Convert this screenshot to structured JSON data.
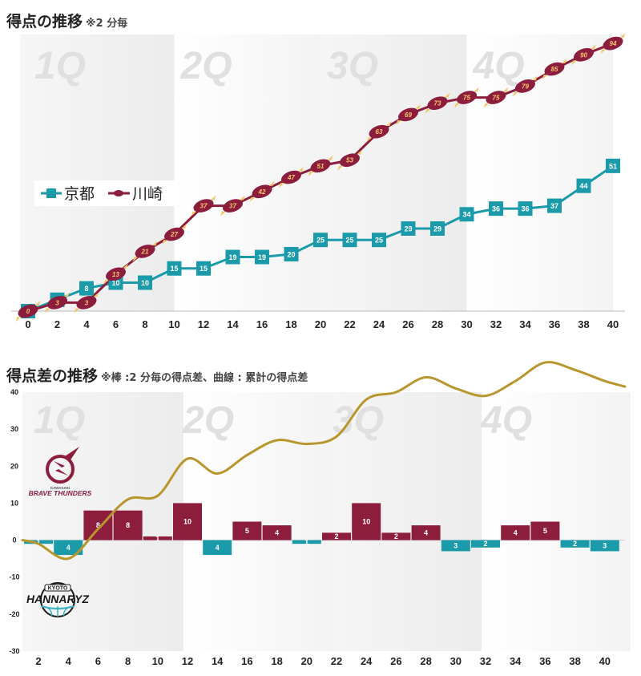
{
  "chart1": {
    "title": "得点の推移",
    "note": "※2 分毎"
  },
  "chart2": {
    "title": "得点差の推移",
    "note": "※棒 :2 分毎の得点差、曲線 : 累計の得点差"
  },
  "quarters": [
    "1Q",
    "2Q",
    "3Q",
    "4Q"
  ],
  "colors": {
    "kyoto": "#1b9aaa",
    "kawasaki": "#8c1d3c",
    "cumulative": "#b8962e",
    "shade": "#ececec",
    "oval_text": "#f3c66a"
  },
  "logos": {
    "kawasaki": {
      "name": "BRAVE THUNDERS",
      "city": "KAWASAKI"
    },
    "kyoto": {
      "name": "HANNARYZ",
      "city": "KYOTO"
    }
  },
  "chart_data": [
    {
      "type": "line",
      "title": "得点の推移",
      "x": [
        0,
        2,
        4,
        6,
        8,
        10,
        12,
        14,
        16,
        18,
        20,
        22,
        24,
        26,
        28,
        30,
        32,
        34,
        36,
        38,
        40
      ],
      "xlim": [
        0,
        40
      ],
      "ylim": [
        0,
        96
      ],
      "legend_position": "left-middle",
      "series": [
        {
          "name": "京都",
          "marker": "square",
          "values": [
            0,
            4,
            8,
            10,
            10,
            15,
            15,
            19,
            19,
            20,
            25,
            25,
            25,
            29,
            29,
            34,
            36,
            36,
            37,
            44,
            51
          ]
        },
        {
          "name": "川崎",
          "marker": "oval",
          "values": [
            0,
            3,
            3,
            13,
            21,
            27,
            37,
            37,
            42,
            47,
            51,
            53,
            63,
            69,
            73,
            75,
            75,
            79,
            85,
            90,
            94
          ]
        }
      ]
    },
    {
      "type": "bar",
      "title": "得点差の推移",
      "categories": [
        2,
        4,
        6,
        8,
        10,
        12,
        14,
        16,
        18,
        20,
        22,
        24,
        26,
        28,
        30,
        32,
        34,
        36,
        38,
        40
      ],
      "values": [
        -1,
        -4,
        8,
        8,
        1,
        10,
        -4,
        5,
        4,
        -1,
        2,
        10,
        2,
        4,
        -3,
        -2,
        4,
        5,
        -2,
        -3
      ],
      "cumulative": [
        -1,
        -5,
        3,
        11,
        12,
        22,
        18,
        23,
        27,
        26,
        28,
        38,
        40,
        44,
        41,
        39,
        43,
        48,
        46,
        43
      ],
      "ylim": [
        -30,
        40
      ],
      "yticks": [
        40,
        30,
        20,
        10,
        0,
        -10,
        -20,
        -30
      ]
    }
  ]
}
